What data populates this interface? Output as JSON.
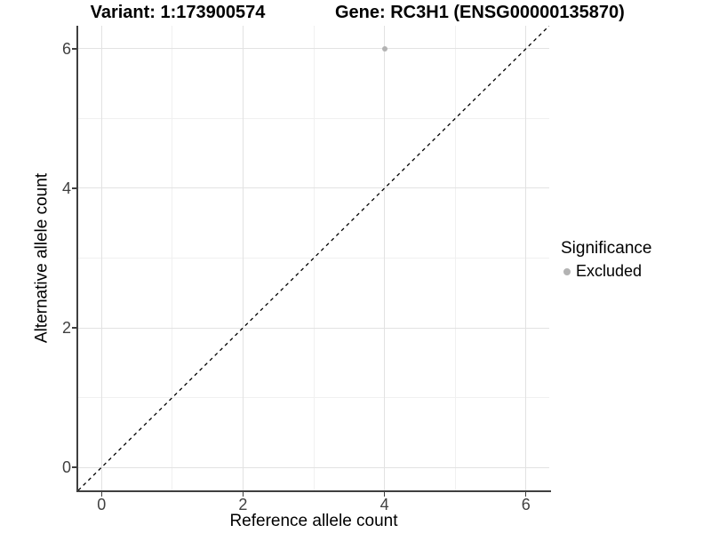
{
  "chart_data": {
    "type": "scatter",
    "titles": {
      "left": "Variant: 1:173900574",
      "right": "Gene: RC3H1 (ENSG00000135870)"
    },
    "xlabel": "Reference allele count",
    "ylabel": "Alternative allele count",
    "xlim": [
      -0.33,
      6.33
    ],
    "ylim": [
      -0.33,
      6.33
    ],
    "x_major_ticks": [
      0,
      2,
      4,
      6
    ],
    "y_major_ticks": [
      0,
      2,
      4,
      6
    ],
    "x_gridlines_major": [
      0,
      2,
      4,
      6
    ],
    "x_gridlines_minor": [
      1,
      3,
      5
    ],
    "y_gridlines_major": [
      0,
      2,
      4,
      6
    ],
    "y_gridlines_minor": [
      1,
      3,
      5
    ],
    "grid": "on",
    "reference_line": {
      "type": "identity",
      "slope": 1,
      "intercept": 0,
      "style": "dashed",
      "color": "#000000"
    },
    "series": [
      {
        "name": "Excluded",
        "color": "#b3b3b3",
        "points": [
          {
            "x": 4,
            "y": 6
          }
        ]
      }
    ],
    "legend": {
      "title": "Significance",
      "position": "right",
      "items": [
        {
          "label": "Excluded",
          "color": "#b3b3b3"
        }
      ]
    },
    "colors": {
      "grid_major": "#e2e2e2",
      "grid_minor": "#f0f0f0",
      "axis_line": "#3f3f3f",
      "tick_label": "#404040",
      "point": "#b3b3b3"
    }
  }
}
